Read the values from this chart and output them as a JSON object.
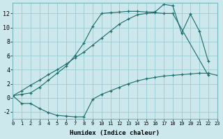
{
  "xlabel": "Humidex (Indice chaleur)",
  "bg_color": "#cce8ec",
  "grid_color": "#99ccd4",
  "line_color": "#1a6b6b",
  "xlim": [
    0,
    23
  ],
  "ylim": [
    -3.0,
    13.5
  ],
  "xticks": [
    0,
    1,
    2,
    3,
    4,
    5,
    6,
    7,
    8,
    9,
    10,
    11,
    12,
    13,
    14,
    15,
    16,
    17,
    18,
    19,
    20,
    21,
    22,
    23
  ],
  "yticks": [
    -2,
    0,
    2,
    4,
    6,
    8,
    10,
    12
  ],
  "curve1_x": [
    0,
    1,
    2,
    3,
    4,
    5,
    6,
    7,
    8,
    9,
    10,
    11,
    12,
    13,
    14,
    15,
    16,
    17,
    18,
    19,
    20,
    21,
    22,
    23
  ],
  "curve1_y": [
    0.3,
    -0.8,
    -0.8,
    -1.5,
    -2.1,
    -2.5,
    -2.6,
    -2.7,
    -2.7,
    -0.2,
    0.5,
    1.0,
    1.5,
    2.0,
    2.4,
    2.7,
    2.9,
    3.1,
    3.2,
    3.3,
    3.4,
    3.5,
    3.5,
    3.2
  ],
  "curve2_x": [
    0,
    1,
    2,
    3,
    4,
    5,
    6,
    7,
    8,
    9,
    10,
    11,
    12,
    13,
    14,
    15,
    16,
    17,
    18,
    22
  ],
  "curve2_y": [
    0.3,
    1.0,
    1.8,
    2.5,
    3.3,
    4.0,
    4.8,
    5.7,
    6.5,
    7.5,
    8.5,
    9.5,
    10.5,
    11.2,
    11.8,
    12.0,
    12.1,
    12.0,
    12.0,
    3.2
  ],
  "curve3_x": [
    0,
    1,
    2,
    3,
    4,
    5,
    6,
    7,
    8,
    9,
    10,
    11,
    12,
    13,
    14,
    15,
    16,
    17,
    18,
    19,
    20,
    21,
    22
  ],
  "curve3_y": [
    0.3,
    0.5,
    0.7,
    1.5,
    2.5,
    3.5,
    4.5,
    6.0,
    7.8,
    10.2,
    12.0,
    12.1,
    12.2,
    12.3,
    12.3,
    12.2,
    12.2,
    13.3,
    13.1,
    9.2,
    11.9,
    9.5,
    5.2
  ]
}
